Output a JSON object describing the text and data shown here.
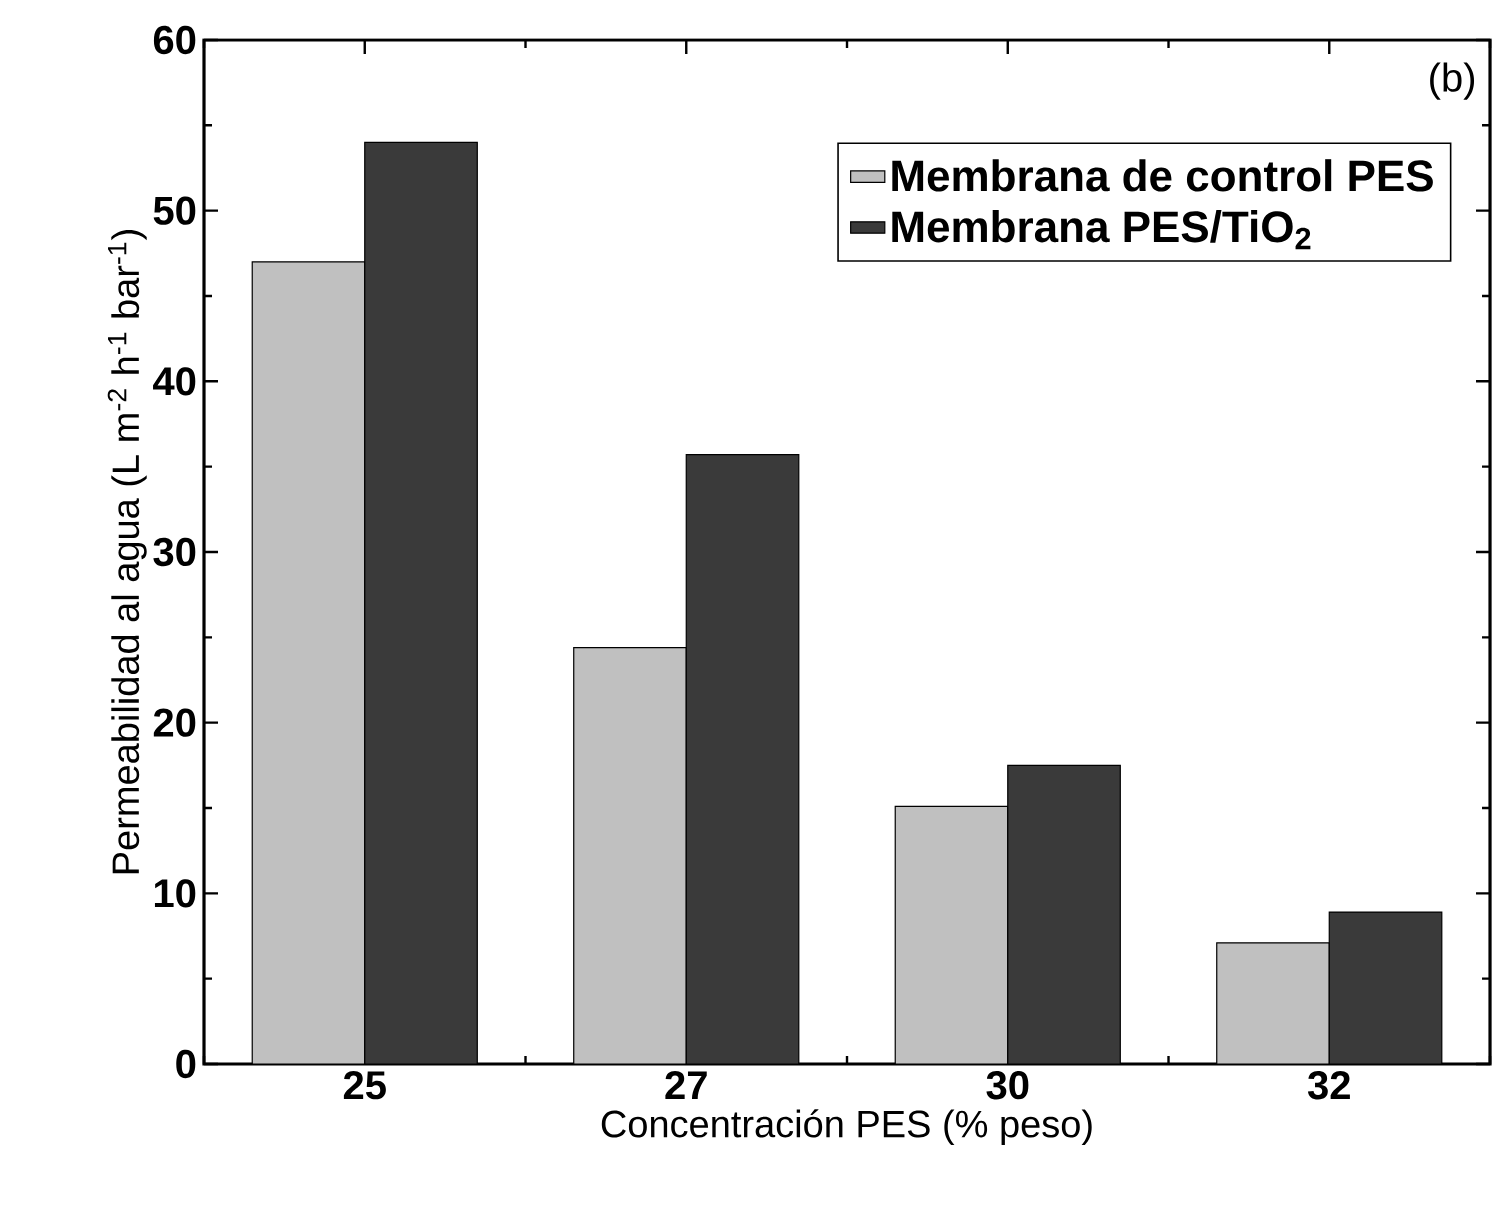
{
  "chart_data": {
    "type": "bar",
    "xlabel": "Concentración PES (% peso)",
    "ylabel": "Permeabilidad al agua (L m$^{-2}$ h$^{-1}$ bar$^{-1}$)",
    "categories": [
      "25",
      "27",
      "30",
      "32"
    ],
    "series": [
      {
        "name": "**Membrana de control PES**",
        "color": "#c0c0c0",
        "values": [
          47.0,
          24.4,
          15.1,
          7.1
        ]
      },
      {
        "name": "**Membrana PES/TiO$_{2}$**",
        "color": "#3a3a3a",
        "values": [
          54.0,
          35.7,
          17.5,
          8.9
        ]
      }
    ],
    "ylim": [
      0,
      60
    ],
    "yticks": [
      0,
      10,
      20,
      30,
      40,
      50,
      60
    ],
    "grid": false,
    "legend": "top right",
    "annotations": [
      "(b)"
    ]
  }
}
